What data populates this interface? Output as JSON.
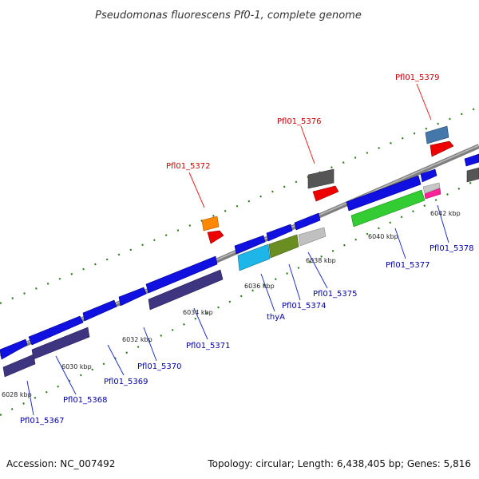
{
  "title": "Pseudomonas fluorescens Pf0-1, complete genome",
  "footer": {
    "accession": "Accession: NC_007492",
    "stats": "Topology: circular; Length: 6,438,405 bp; Genes: 5,816"
  },
  "colors": {
    "backbone": "#888888",
    "tick_marks": "#2e7d1a",
    "label_forward": "#cc0000",
    "label_reverse": "#0000aa",
    "leader_forward": "#ee2222",
    "leader_reverse": "#2233cc"
  },
  "scale_labels": [
    "6028 kbp",
    "6030 kbp",
    "6032 kbp",
    "6034 kbp",
    "6036 kbp",
    "6038 kbp",
    "6040 kbp",
    "6042 kbp"
  ],
  "gene_labels": [
    {
      "text": "Pfl01_5367",
      "strand": "reverse"
    },
    {
      "text": "Pfl01_5368",
      "strand": "reverse"
    },
    {
      "text": "Pfl01_5369",
      "strand": "reverse"
    },
    {
      "text": "Pfl01_5370",
      "strand": "reverse"
    },
    {
      "text": "Pfl01_5371",
      "strand": "reverse"
    },
    {
      "text": "Pfl01_5372",
      "strand": "forward"
    },
    {
      "text": "thyA",
      "strand": "reverse"
    },
    {
      "text": "Pfl01_5374",
      "strand": "reverse"
    },
    {
      "text": "Pfl01_5375",
      "strand": "reverse"
    },
    {
      "text": "Pfl01_5376",
      "strand": "forward"
    },
    {
      "text": "Pfl01_5377",
      "strand": "reverse"
    },
    {
      "text": "Pfl01_5378",
      "strand": "reverse"
    },
    {
      "text": "Pfl01_5379",
      "strand": "forward"
    }
  ]
}
